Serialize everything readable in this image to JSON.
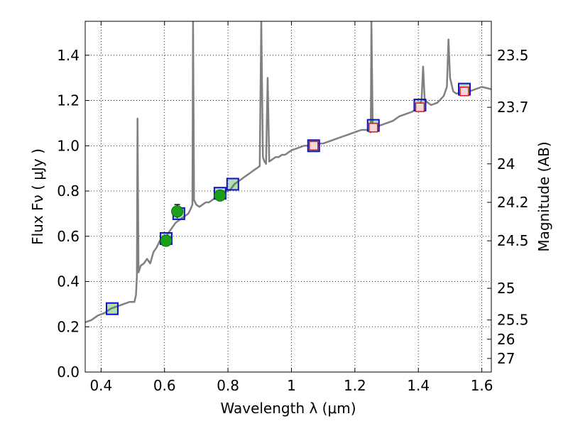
{
  "chart_data": {
    "type": "line",
    "xlabel": "Wavelength  λ (μm)",
    "ylabel": "Flux  Fν ( μJy )",
    "ylabel_right": "Magnitude (AB)",
    "xlim": [
      0.35,
      1.63
    ],
    "ylim": [
      0.0,
      1.55
    ],
    "grid": true,
    "x_ticks": [
      0.4,
      0.6,
      0.8,
      1.0,
      1.2,
      1.4,
      1.6
    ],
    "x_tick_labels": [
      "0.4",
      "0.6",
      "0.8",
      "1",
      "1.2",
      "1.4",
      "1.6"
    ],
    "y_ticks": [
      0.0,
      0.2,
      0.4,
      0.6,
      0.8,
      1.0,
      1.2,
      1.4
    ],
    "y_tick_labels": [
      "0.0",
      "0.2",
      "0.4",
      "0.6",
      "0.8",
      "1.0",
      "1.2",
      "1.4"
    ],
    "right_ticks": [
      {
        "label": "23.5",
        "flux": 1.4
      },
      {
        "label": "23.7",
        "flux": 1.17
      },
      {
        "label": "24",
        "flux": 0.92
      },
      {
        "label": "24.2",
        "flux": 0.75
      },
      {
        "label": "24.5",
        "flux": 0.58
      },
      {
        "label": "25",
        "flux": 0.37
      },
      {
        "label": "25.5",
        "flux": 0.23
      },
      {
        "label": "26",
        "flux": 0.145
      },
      {
        "label": "27",
        "flux": 0.06
      }
    ],
    "series": [
      {
        "kind": "spectrum",
        "color": "#808080",
        "points": [
          [
            0.35,
            0.22
          ],
          [
            0.37,
            0.23
          ],
          [
            0.39,
            0.25
          ],
          [
            0.41,
            0.26
          ],
          [
            0.43,
            0.28
          ],
          [
            0.45,
            0.29
          ],
          [
            0.47,
            0.3
          ],
          [
            0.49,
            0.31
          ],
          [
            0.505,
            0.31
          ],
          [
            0.51,
            0.34
          ],
          [
            0.513,
            0.42
          ],
          [
            0.515,
            1.12
          ],
          [
            0.518,
            0.44
          ],
          [
            0.525,
            0.47
          ],
          [
            0.535,
            0.48
          ],
          [
            0.545,
            0.5
          ],
          [
            0.555,
            0.48
          ],
          [
            0.565,
            0.53
          ],
          [
            0.575,
            0.55
          ],
          [
            0.585,
            0.58
          ],
          [
            0.595,
            0.56
          ],
          [
            0.605,
            0.6
          ],
          [
            0.615,
            0.62
          ],
          [
            0.625,
            0.64
          ],
          [
            0.635,
            0.66
          ],
          [
            0.645,
            0.67
          ],
          [
            0.655,
            0.68
          ],
          [
            0.665,
            0.69
          ],
          [
            0.675,
            0.7
          ],
          [
            0.682,
            0.72
          ],
          [
            0.688,
            0.74
          ],
          [
            0.69,
            1.55
          ],
          [
            0.693,
            0.76
          ],
          [
            0.7,
            0.74
          ],
          [
            0.71,
            0.73
          ],
          [
            0.72,
            0.74
          ],
          [
            0.73,
            0.75
          ],
          [
            0.74,
            0.75
          ],
          [
            0.75,
            0.76
          ],
          [
            0.76,
            0.77
          ],
          [
            0.77,
            0.78
          ],
          [
            0.78,
            0.79
          ],
          [
            0.79,
            0.8
          ],
          [
            0.8,
            0.8
          ],
          [
            0.81,
            0.81
          ],
          [
            0.82,
            0.83
          ],
          [
            0.83,
            0.84
          ],
          [
            0.84,
            0.85
          ],
          [
            0.85,
            0.86
          ],
          [
            0.86,
            0.87
          ],
          [
            0.87,
            0.88
          ],
          [
            0.88,
            0.89
          ],
          [
            0.89,
            0.9
          ],
          [
            0.9,
            0.91
          ],
          [
            0.905,
            1.55
          ],
          [
            0.91,
            0.95
          ],
          [
            0.915,
            0.93
          ],
          [
            0.92,
            0.92
          ],
          [
            0.925,
            1.3
          ],
          [
            0.93,
            0.93
          ],
          [
            0.94,
            0.94
          ],
          [
            0.95,
            0.95
          ],
          [
            0.96,
            0.95
          ],
          [
            0.97,
            0.96
          ],
          [
            0.98,
            0.96
          ],
          [
            0.99,
            0.97
          ],
          [
            1.0,
            0.98
          ],
          [
            1.02,
            0.99
          ],
          [
            1.04,
            1.0
          ],
          [
            1.06,
            1.0
          ],
          [
            1.08,
            1.01
          ],
          [
            1.1,
            1.01
          ],
          [
            1.12,
            1.02
          ],
          [
            1.14,
            1.03
          ],
          [
            1.16,
            1.04
          ],
          [
            1.18,
            1.05
          ],
          [
            1.2,
            1.06
          ],
          [
            1.22,
            1.07
          ],
          [
            1.24,
            1.07
          ],
          [
            1.25,
            1.06
          ],
          [
            1.252,
            1.55
          ],
          [
            1.256,
            1.1
          ],
          [
            1.26,
            1.08
          ],
          [
            1.28,
            1.09
          ],
          [
            1.3,
            1.1
          ],
          [
            1.32,
            1.11
          ],
          [
            1.34,
            1.13
          ],
          [
            1.36,
            1.14
          ],
          [
            1.38,
            1.15
          ],
          [
            1.4,
            1.17
          ],
          [
            1.41,
            1.2
          ],
          [
            1.415,
            1.35
          ],
          [
            1.42,
            1.2
          ],
          [
            1.44,
            1.18
          ],
          [
            1.46,
            1.19
          ],
          [
            1.48,
            1.22
          ],
          [
            1.49,
            1.26
          ],
          [
            1.495,
            1.47
          ],
          [
            1.5,
            1.3
          ],
          [
            1.51,
            1.24
          ],
          [
            1.52,
            1.23
          ],
          [
            1.54,
            1.24
          ],
          [
            1.56,
            1.24
          ],
          [
            1.58,
            1.25
          ],
          [
            1.6,
            1.26
          ],
          [
            1.63,
            1.25
          ]
        ]
      },
      {
        "kind": "blue-squares",
        "color": "#1010d0",
        "fill": "#2a9d2a",
        "points": [
          [
            0.435,
            0.28
          ],
          [
            0.605,
            0.59
          ],
          [
            0.645,
            0.7
          ],
          [
            0.775,
            0.79
          ],
          [
            0.815,
            0.83
          ],
          [
            1.07,
            1.0
          ],
          [
            1.258,
            1.09
          ],
          [
            1.405,
            1.18
          ],
          [
            1.545,
            1.25
          ]
        ]
      },
      {
        "kind": "red-squares",
        "color": "#e0141e",
        "points": [
          [
            1.07,
            1.0
          ],
          [
            1.258,
            1.08
          ],
          [
            1.405,
            1.17
          ],
          [
            1.545,
            1.24
          ]
        ]
      },
      {
        "kind": "green-circles",
        "color": "#1aa01a",
        "points": [
          {
            "x": 0.605,
            "y": 0.58,
            "err": 0.02
          },
          {
            "x": 0.64,
            "y": 0.71,
            "err": 0.03
          },
          {
            "x": 0.775,
            "y": 0.78,
            "err": 0.02
          }
        ]
      }
    ]
  }
}
